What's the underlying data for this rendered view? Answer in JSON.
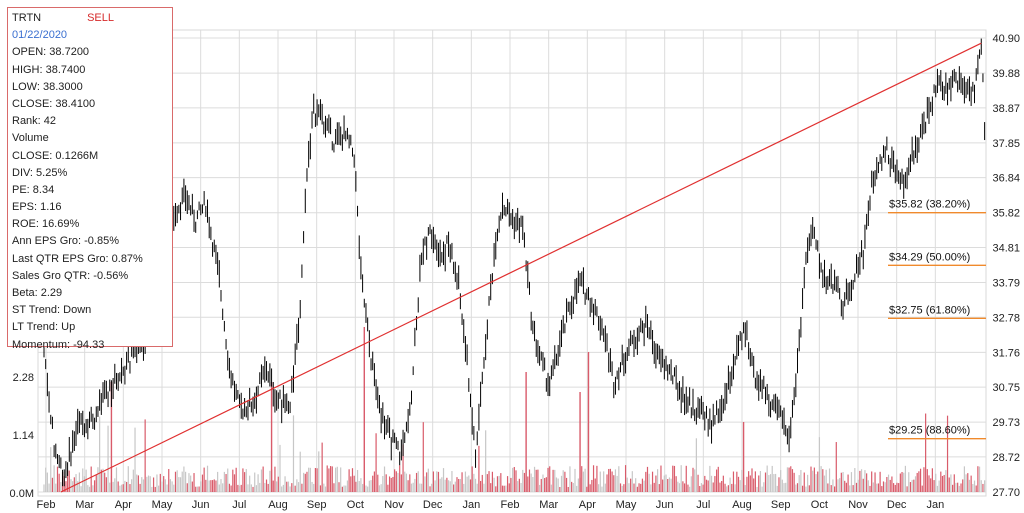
{
  "info": {
    "symbol": "TRTN",
    "signal": "SELL",
    "date": "01/22/2020",
    "lines": [
      "OPEN: 38.7200",
      "HIGH: 38.7400",
      "LOW: 38.3000",
      "CLOSE: 38.4100",
      "Rank: 42",
      "Volume",
      "CLOSE: 0.1266M",
      "DIV: 5.25%",
      "PE: 8.34",
      "EPS: 1.16",
      "ROE: 16.69%",
      "Ann EPS Gro: -0.85%",
      "Last QTR EPS Gro: 0.87%",
      "Sales Gro QTR: -0.56%",
      "Beta: 2.29",
      "ST Trend: Down",
      "LT Trend: Up",
      "Momentum: -94.33"
    ]
  },
  "chart_data": {
    "type": "line",
    "price_axis": {
      "ticks": [
        "40.90",
        "39.88",
        "38.87",
        "37.85",
        "36.84",
        "35.82",
        "34.81",
        "33.79",
        "32.78",
        "31.76",
        "30.75",
        "29.73",
        "28.72",
        "27.70"
      ],
      "ylim": [
        27.7,
        40.9
      ]
    },
    "volume_axis": {
      "ticks": [
        "0.0M",
        "1.14",
        "2.28"
      ]
    },
    "x_ticks": [
      "Feb",
      "Mar",
      "Apr",
      "May",
      "Jun",
      "Jul",
      "Aug",
      "Sep",
      "Oct",
      "Nov",
      "Dec",
      "Jan",
      "Feb",
      "Mar",
      "Apr",
      "May",
      "Jun",
      "Jul",
      "Aug",
      "Sep",
      "Oct",
      "Nov",
      "Dec",
      "Jan"
    ],
    "series": [
      {
        "values": [
          [
            0,
            31.9
          ],
          [
            6,
            29.0
          ],
          [
            12,
            28.2
          ],
          [
            20,
            29.6
          ],
          [
            30,
            29.9
          ],
          [
            40,
            30.8
          ],
          [
            52,
            31.6
          ],
          [
            62,
            32.3
          ],
          [
            70,
            34.1
          ],
          [
            78,
            35.9
          ],
          [
            84,
            36.3
          ],
          [
            90,
            35.6
          ],
          [
            96,
            36.1
          ],
          [
            104,
            33.9
          ],
          [
            110,
            31.3
          ],
          [
            116,
            30.1
          ],
          [
            124,
            30.3
          ],
          [
            132,
            31.3
          ],
          [
            138,
            30.4
          ],
          [
            146,
            30.1
          ],
          [
            152,
            33.1
          ],
          [
            156,
            37.1
          ],
          [
            160,
            38.8
          ],
          [
            166,
            38.5
          ],
          [
            172,
            37.9
          ],
          [
            178,
            38.1
          ],
          [
            184,
            37.5
          ],
          [
            188,
            34.0
          ],
          [
            194,
            31.6
          ],
          [
            200,
            30.0
          ],
          [
            206,
            29.2
          ],
          [
            212,
            28.8
          ],
          [
            218,
            30.6
          ],
          [
            224,
            34.7
          ],
          [
            230,
            35.3
          ],
          [
            236,
            34.6
          ],
          [
            240,
            34.9
          ],
          [
            246,
            33.7
          ],
          [
            252,
            31.0
          ],
          [
            256,
            28.7
          ],
          [
            262,
            32.1
          ],
          [
            268,
            35.1
          ],
          [
            272,
            36.1
          ],
          [
            278,
            35.6
          ],
          [
            284,
            35.4
          ],
          [
            290,
            32.4
          ],
          [
            296,
            31.3
          ],
          [
            300,
            30.8
          ],
          [
            306,
            32.0
          ],
          [
            312,
            33.1
          ],
          [
            318,
            33.8
          ],
          [
            324,
            33.3
          ],
          [
            332,
            32.4
          ],
          [
            338,
            30.9
          ],
          [
            346,
            31.8
          ],
          [
            352,
            32.3
          ],
          [
            358,
            32.6
          ],
          [
            364,
            31.6
          ],
          [
            370,
            31.3
          ],
          [
            378,
            30.6
          ],
          [
            384,
            30.2
          ],
          [
            392,
            29.9
          ],
          [
            396,
            29.6
          ],
          [
            404,
            30.4
          ],
          [
            410,
            31.6
          ],
          [
            416,
            32.4
          ],
          [
            422,
            31.1
          ],
          [
            430,
            30.4
          ],
          [
            436,
            29.9
          ],
          [
            442,
            29.4
          ],
          [
            446,
            30.9
          ],
          [
            452,
            34.5
          ],
          [
            456,
            35.3
          ],
          [
            462,
            34.0
          ],
          [
            468,
            33.8
          ],
          [
            474,
            33.2
          ],
          [
            478,
            33.6
          ],
          [
            482,
            34.2
          ],
          [
            486,
            34.7
          ],
          [
            490,
            36.3
          ],
          [
            494,
            37.3
          ],
          [
            500,
            37.6
          ],
          [
            506,
            36.9
          ],
          [
            510,
            36.6
          ],
          [
            516,
            37.6
          ],
          [
            520,
            38.1
          ],
          [
            526,
            38.9
          ],
          [
            530,
            39.6
          ],
          [
            536,
            39.3
          ],
          [
            540,
            39.8
          ],
          [
            546,
            39.5
          ],
          [
            552,
            39.4
          ],
          [
            556,
            40.6
          ],
          [
            558,
            38.4
          ]
        ]
      }
    ],
    "annotations": {
      "trendline": {
        "from": [
          10,
          27.7
        ],
        "to": [
          556,
          40.75
        ]
      },
      "fib_levels": [
        {
          "value": 35.82,
          "label": "$35.82 (38.20%)"
        },
        {
          "value": 34.29,
          "label": "$34.29 (50.00%)"
        },
        {
          "value": 32.75,
          "label": "$32.75 (61.80%)"
        },
        {
          "value": 29.25,
          "label": "$29.25 (88.60%)"
        }
      ]
    },
    "colors": {
      "trendline": "#e03030",
      "fib": "#f08a2c",
      "price": "#000000",
      "volume_up": "#d95b6a",
      "volume_down": "#c7c7c7",
      "grid": "#dcdcdc"
    }
  }
}
